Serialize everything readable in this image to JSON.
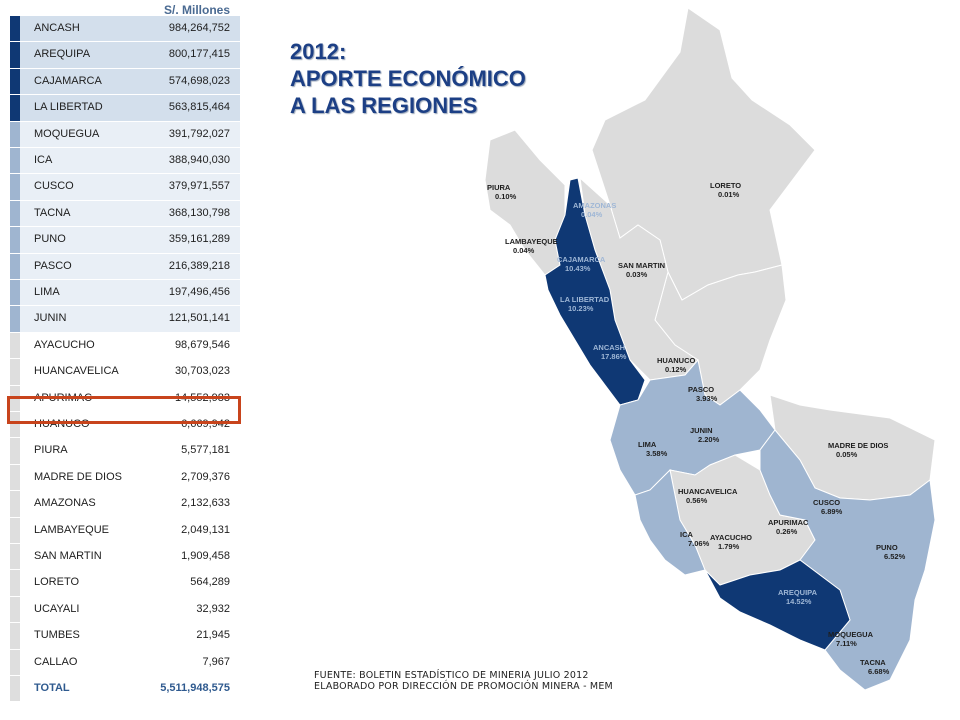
{
  "table": {
    "header": "S/. Millones",
    "rows": [
      {
        "name": "ANCASH",
        "value": "984,264,752",
        "tier": 1
      },
      {
        "name": "AREQUIPA",
        "value": "800,177,415",
        "tier": 1
      },
      {
        "name": "CAJAMARCA",
        "value": "574,698,023",
        "tier": 1
      },
      {
        "name": "LA LIBERTAD",
        "value": "563,815,464",
        "tier": 1
      },
      {
        "name": "MOQUEGUA",
        "value": "391,792,027",
        "tier": 2
      },
      {
        "name": "ICA",
        "value": "388,940,030",
        "tier": 2
      },
      {
        "name": "CUSCO",
        "value": "379,971,557",
        "tier": 2
      },
      {
        "name": "TACNA",
        "value": "368,130,798",
        "tier": 2
      },
      {
        "name": "PUNO",
        "value": "359,161,289",
        "tier": 2
      },
      {
        "name": "PASCO",
        "value": "216,389,218",
        "tier": 2
      },
      {
        "name": "LIMA",
        "value": "197,496,456",
        "tier": 2
      },
      {
        "name": "JUNIN",
        "value": "121,501,141",
        "tier": 2
      },
      {
        "name": "AYACUCHO",
        "value": "98,679,546",
        "tier": 3
      },
      {
        "name": "HUANCAVELICA",
        "value": "30,703,023",
        "tier": 3
      },
      {
        "name": "APURIMAC",
        "value": "14,552,983",
        "tier": 3
      },
      {
        "name": "HUANUCO",
        "value": "6,669,942",
        "tier": 3
      },
      {
        "name": "PIURA",
        "value": "5,577,181",
        "tier": 3
      },
      {
        "name": "MADRE DE DIOS",
        "value": "2,709,376",
        "tier": 3
      },
      {
        "name": "AMAZONAS",
        "value": "2,132,633",
        "tier": 3
      },
      {
        "name": "LAMBAYEQUE",
        "value": "2,049,131",
        "tier": 3
      },
      {
        "name": "SAN MARTIN",
        "value": "1,909,458",
        "tier": 3
      },
      {
        "name": "LORETO",
        "value": "564,289",
        "tier": 3
      },
      {
        "name": "UCAYALI",
        "value": "32,932",
        "tier": 3
      },
      {
        "name": "TUMBES",
        "value": "21,945",
        "tier": 3
      },
      {
        "name": "CALLAO",
        "value": "7,967",
        "tier": 3
      }
    ],
    "total": {
      "name": "TOTAL",
      "value": "5,511,948,575"
    },
    "highlighted_row": "APURIMAC"
  },
  "title": {
    "line1": "2012:",
    "line2": "APORTE ECONÓMICO",
    "line3": "A LAS REGIONES"
  },
  "colors": {
    "tier1": "#0f3874",
    "tier2": "#9fb5d0",
    "tier3": "#dcdcdc",
    "highlight": "#c8441c",
    "title": "#1c3f85"
  },
  "map": {
    "regions": [
      {
        "name": "PIURA",
        "pct": "0.10%"
      },
      {
        "name": "AMAZONAS",
        "pct": "0.04%"
      },
      {
        "name": "LORETO",
        "pct": "0.01%"
      },
      {
        "name": "LAMBAYEQUE",
        "pct": "0.04%"
      },
      {
        "name": "CAJAMARCA",
        "pct": "10.43%"
      },
      {
        "name": "SAN MARTIN",
        "pct": "0.03%"
      },
      {
        "name": "LA LIBERTAD",
        "pct": "10.23%"
      },
      {
        "name": "ANCASH",
        "pct": "17.86%"
      },
      {
        "name": "HUANUCO",
        "pct": "0.12%"
      },
      {
        "name": "PASCO",
        "pct": "3.93%"
      },
      {
        "name": "LIMA",
        "pct": "3.58%"
      },
      {
        "name": "JUNIN",
        "pct": "2.20%"
      },
      {
        "name": "MADRE DE DIOS",
        "pct": "0.05%"
      },
      {
        "name": "HUANCAVELICA",
        "pct": "0.56%"
      },
      {
        "name": "CUSCO",
        "pct": "6.89%"
      },
      {
        "name": "APURIMAC",
        "pct": "0.26%"
      },
      {
        "name": "ICA",
        "pct": "7.06%"
      },
      {
        "name": "AYACUCHO",
        "pct": "1.79%"
      },
      {
        "name": "PUNO",
        "pct": "6.52%"
      },
      {
        "name": "AREQUIPA",
        "pct": "14.52%"
      },
      {
        "name": "MOQUEGUA",
        "pct": "7.11%"
      },
      {
        "name": "TACNA",
        "pct": "6.68%"
      }
    ]
  },
  "source": {
    "line1": "FUENTE: BOLETIN ESTADÍSTICO DE MINERIA JULIO 2012",
    "line2": "ELABORADO POR DIRECCIÓN DE PROMOCIÓN MINERA  - MEM"
  }
}
